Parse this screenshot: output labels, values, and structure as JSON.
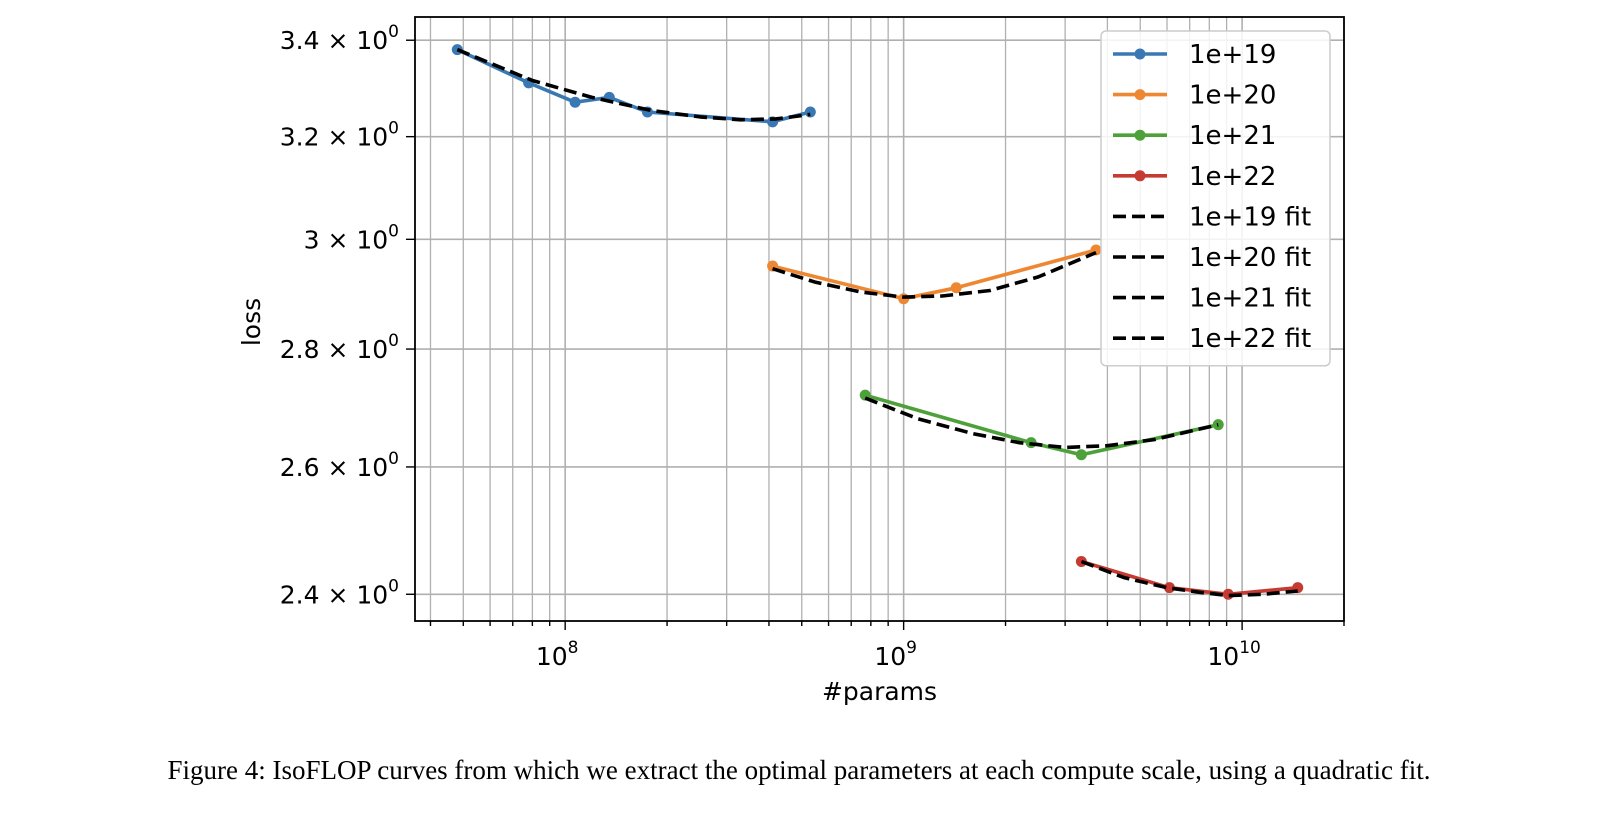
{
  "caption": "Figure 4: IsoFLOP curves from which we extract the optimal parameters at each compute scale, using a quadratic fit.",
  "chart_data": {
    "type": "line",
    "title": "",
    "xlabel": "#params",
    "ylabel": "loss",
    "x_scale": "log",
    "y_scale": "log",
    "xlim": [
      36000000,
      20000000000
    ],
    "ylim": [
      2.36,
      3.45
    ],
    "grid": true,
    "legend_position": "top-right",
    "x_ticks": [
      {
        "value": 100000000,
        "base": "10",
        "exp": "8"
      },
      {
        "value": 1000000000,
        "base": "10",
        "exp": "9"
      },
      {
        "value": 10000000000,
        "base": "10",
        "exp": "10"
      }
    ],
    "y_ticks": [
      {
        "value": 2.4,
        "mant": "2.4 × 10",
        "exp": "0"
      },
      {
        "value": 2.6,
        "mant": "2.6 × 10",
        "exp": "0"
      },
      {
        "value": 2.8,
        "mant": "2.8 × 10",
        "exp": "0"
      },
      {
        "value": 3.0,
        "mant": "3 × 10",
        "exp": "0"
      },
      {
        "value": 3.2,
        "mant": "3.2 × 10",
        "exp": "0"
      },
      {
        "value": 3.4,
        "mant": "3.4 × 10",
        "exp": "0"
      }
    ],
    "series": [
      {
        "name": "1e+19",
        "color": "#3a78b4",
        "style": "line-marker",
        "x": [
          48000000,
          78000000,
          107000000,
          135000000,
          175000000,
          410000000,
          530000000
        ],
        "y": [
          3.38,
          3.31,
          3.27,
          3.28,
          3.25,
          3.23,
          3.25
        ]
      },
      {
        "name": "1e+20",
        "color": "#ee8732",
        "style": "line-marker",
        "x": [
          410000000,
          1000000000,
          1430000000,
          3700000000
        ],
        "y": [
          2.95,
          2.89,
          2.91,
          2.98
        ]
      },
      {
        "name": "1e+21",
        "color": "#4ea13a",
        "style": "line-marker",
        "x": [
          770000000,
          2380000000,
          3350000000,
          8500000000
        ],
        "y": [
          2.72,
          2.64,
          2.62,
          2.67
        ]
      },
      {
        "name": "1e+22",
        "color": "#c53b32",
        "style": "line-marker",
        "x": [
          3350000000,
          6100000000,
          9100000000,
          14600000000
        ],
        "y": [
          2.45,
          2.41,
          2.4,
          2.41
        ]
      },
      {
        "name": "1e+19 fit",
        "color": "#000000",
        "style": "dashed",
        "x": [
          48000000,
          80000000,
          120000000,
          180000000,
          250000000,
          330000000,
          420000000,
          530000000
        ],
        "y": [
          3.38,
          3.315,
          3.28,
          3.253,
          3.24,
          3.234,
          3.236,
          3.245
        ]
      },
      {
        "name": "1e+20 fit",
        "color": "#000000",
        "style": "dashed",
        "x": [
          410000000,
          550000000,
          750000000,
          1000000000,
          1300000000,
          1800000000,
          2500000000,
          3700000000
        ],
        "y": [
          2.945,
          2.92,
          2.902,
          2.893,
          2.895,
          2.905,
          2.93,
          2.975
        ]
      },
      {
        "name": "1e+21 fit",
        "color": "#000000",
        "style": "dashed",
        "x": [
          770000000,
          1100000000,
          1600000000,
          2200000000,
          3000000000,
          4000000000,
          5500000000,
          8500000000
        ],
        "y": [
          2.715,
          2.68,
          2.655,
          2.64,
          2.632,
          2.635,
          2.645,
          2.67
        ]
      },
      {
        "name": "1e+22 fit",
        "color": "#000000",
        "style": "dashed",
        "x": [
          3350000000,
          4500000000,
          6000000000,
          7500000000,
          9100000000,
          11500000000,
          14600000000
        ],
        "y": [
          2.45,
          2.425,
          2.41,
          2.403,
          2.398,
          2.4,
          2.405
        ]
      }
    ]
  }
}
